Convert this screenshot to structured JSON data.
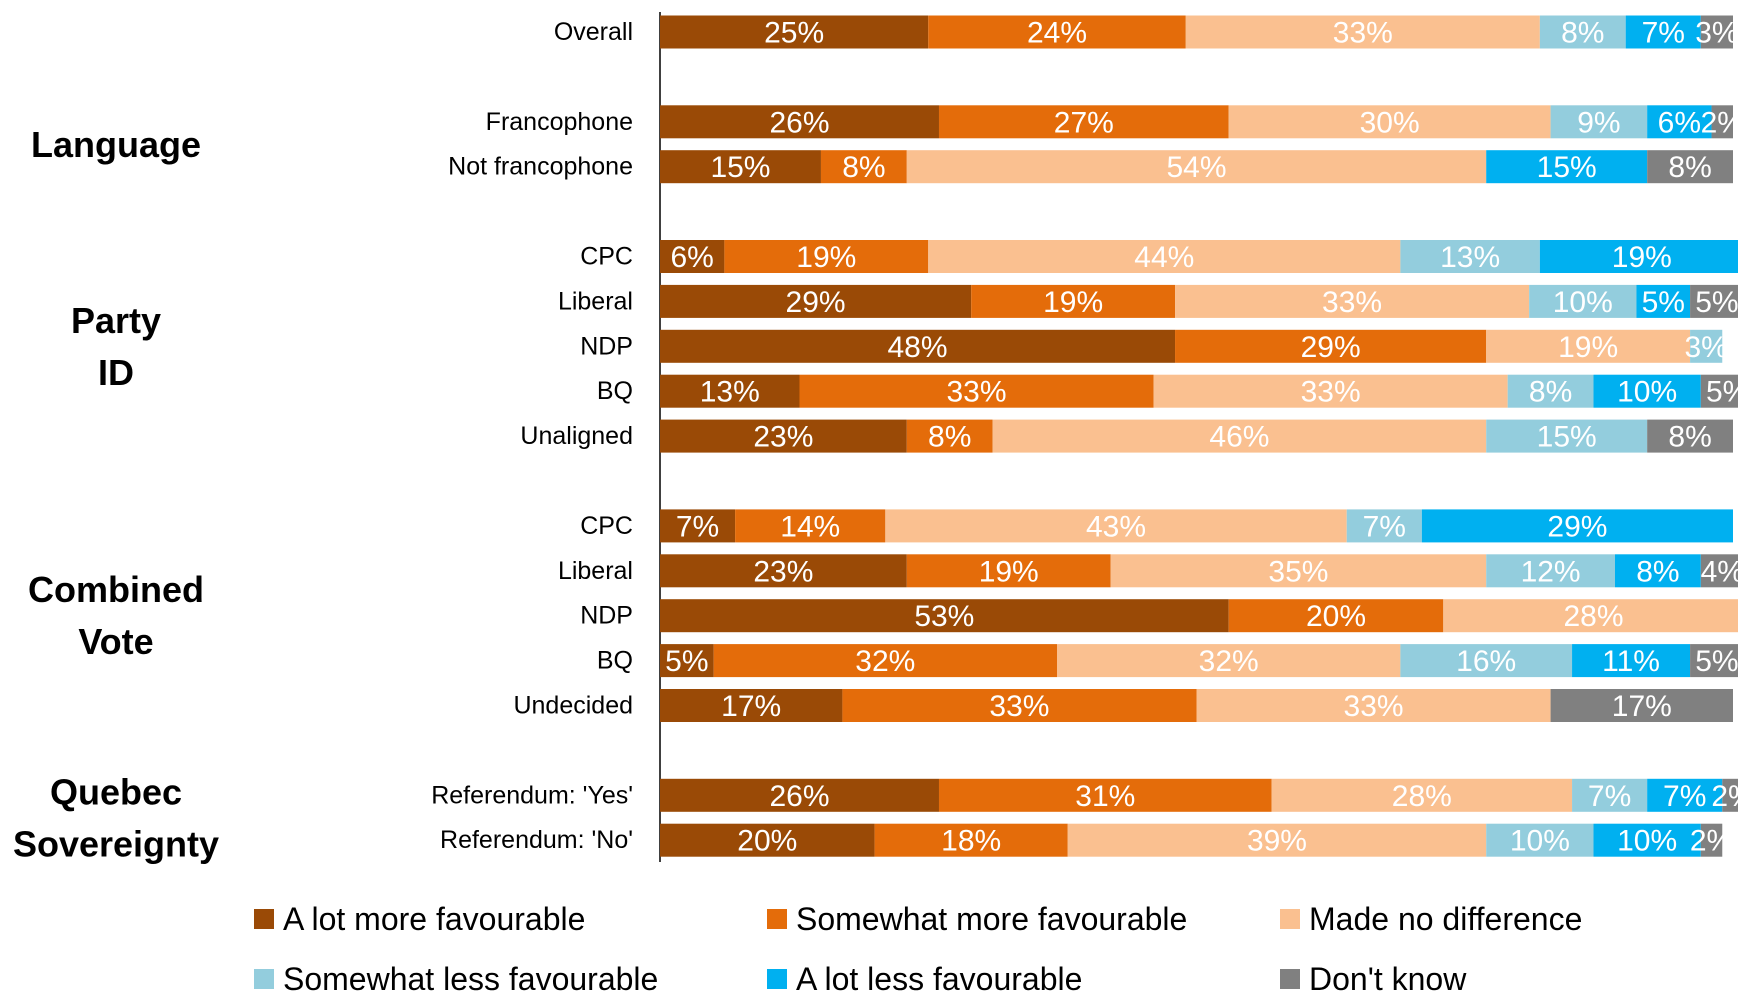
{
  "chart_data": {
    "type": "bar",
    "orientation": "horizontal",
    "stacked": true,
    "value_format": "percent",
    "xlim": [
      0,
      100
    ],
    "grid": false,
    "legend_placement": "bottom",
    "series": [
      {
        "name": "A lot more favourable",
        "color": "#9a4a06"
      },
      {
        "name": "Somewhat more favourable",
        "color": "#e46c0a"
      },
      {
        "name": "Made no difference",
        "color": "#fac090"
      },
      {
        "name": "Somewhat less favourable",
        "color": "#93cddd"
      },
      {
        "name": "A lot less favourable",
        "color": "#00b0f0"
      },
      {
        "name": "Don't know",
        "color": "#808080"
      }
    ],
    "groups": [
      {
        "label": "",
        "rows": [
          {
            "label": "Overall",
            "values": [
              25,
              24,
              33,
              8,
              7,
              3
            ]
          }
        ]
      },
      {
        "label": "Language",
        "rows": [
          {
            "label": "Francophone",
            "values": [
              26,
              27,
              30,
              9,
              6,
              2
            ]
          },
          {
            "label": "Not francophone",
            "values": [
              15,
              8,
              54,
              0,
              15,
              8
            ]
          }
        ]
      },
      {
        "label": "Party ID",
        "rows": [
          {
            "label": "CPC",
            "values": [
              6,
              19,
              44,
              13,
              19,
              0
            ]
          },
          {
            "label": "Liberal",
            "values": [
              29,
              19,
              33,
              10,
              5,
              5
            ]
          },
          {
            "label": "NDP",
            "values": [
              48,
              29,
              19,
              3,
              0,
              0
            ]
          },
          {
            "label": "BQ",
            "values": [
              13,
              33,
              33,
              8,
              10,
              5
            ]
          },
          {
            "label": "Unaligned",
            "values": [
              23,
              8,
              46,
              15,
              0,
              8
            ]
          }
        ]
      },
      {
        "label": "Combined Vote",
        "rows": [
          {
            "label": "CPC",
            "values": [
              7,
              14,
              43,
              7,
              29,
              0
            ]
          },
          {
            "label": "Liberal",
            "values": [
              23,
              19,
              35,
              12,
              8,
              4
            ]
          },
          {
            "label": "NDP",
            "values": [
              53,
              20,
              28,
              0,
              0,
              0
            ]
          },
          {
            "label": "BQ",
            "values": [
              5,
              32,
              32,
              16,
              11,
              5
            ]
          },
          {
            "label": "Undecided",
            "values": [
              17,
              33,
              33,
              0,
              0,
              17
            ]
          }
        ]
      },
      {
        "label": "Quebec Sovereignty",
        "rows": [
          {
            "label": "Referendum: 'Yes'",
            "values": [
              26,
              31,
              28,
              7,
              7,
              2
            ]
          },
          {
            "label": "Referendum: 'No'",
            "values": [
              20,
              18,
              39,
              10,
              10,
              2
            ]
          }
        ]
      }
    ]
  }
}
